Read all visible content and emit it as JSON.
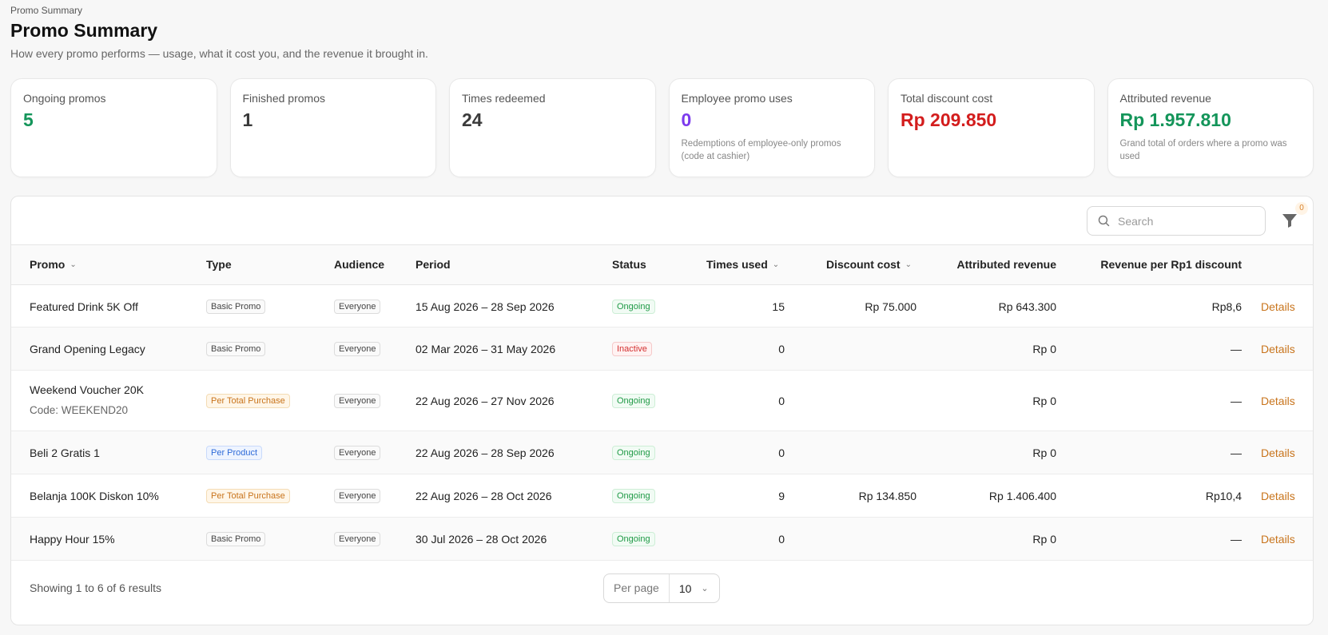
{
  "breadcrumb": "Promo Summary",
  "title": "Promo Summary",
  "subtitle": "How every promo performs — usage, what it cost you, and the revenue it brought in.",
  "cards": [
    {
      "label": "Ongoing promos",
      "value": "5",
      "color": "#14955a",
      "sub": ""
    },
    {
      "label": "Finished promos",
      "value": "1",
      "color": "#3a3a3a",
      "sub": ""
    },
    {
      "label": "Times redeemed",
      "value": "24",
      "color": "#3a3a3a",
      "sub": ""
    },
    {
      "label": "Employee promo uses",
      "value": "0",
      "color": "#7c3aed",
      "sub": "Redemptions of employee-only promos (code at cashier)"
    },
    {
      "label": "Total discount cost",
      "value": "Rp 209.850",
      "color": "#d31d1d",
      "sub": ""
    },
    {
      "label": "Attributed revenue",
      "value": "Rp 1.957.810",
      "color": "#14955a",
      "sub": "Grand total of orders where a promo was used"
    }
  ],
  "toolbar": {
    "search_placeholder": "Search",
    "filter_count": "0",
    "search_icon": "search-icon",
    "filter_icon": "funnel-icon"
  },
  "columns": {
    "promo": "Promo",
    "type": "Type",
    "audience": "Audience",
    "period": "Period",
    "status": "Status",
    "times_used": "Times used",
    "discount_cost": "Discount cost",
    "attributed_revenue": "Attributed revenue",
    "revenue_per": "Revenue per Rp1 discount"
  },
  "rows": [
    {
      "promo": "Featured Drink 5K Off",
      "code": "",
      "type": "Basic Promo",
      "type_style": "gray",
      "audience": "Everyone",
      "period": "15 Aug 2026 – 28 Sep 2026",
      "status": "Ongoing",
      "status_style": "green",
      "times_used": "15",
      "discount_cost": "Rp 75.000",
      "attributed_revenue": "Rp 643.300",
      "revenue_per": "Rp8,6",
      "action": "Details"
    },
    {
      "promo": "Grand Opening Legacy",
      "code": "",
      "type": "Basic Promo",
      "type_style": "gray",
      "audience": "Everyone",
      "period": "02 Mar 2026 – 31 May 2026",
      "status": "Inactive",
      "status_style": "red",
      "times_used": "0",
      "discount_cost": "",
      "attributed_revenue": "Rp 0",
      "revenue_per": "—",
      "action": "Details"
    },
    {
      "promo": "Weekend Voucher 20K",
      "code": "Code: WEEKEND20",
      "type": "Per Total Purchase",
      "type_style": "orange",
      "audience": "Everyone",
      "period": "22 Aug 2026 – 27 Nov 2026",
      "status": "Ongoing",
      "status_style": "green",
      "times_used": "0",
      "discount_cost": "",
      "attributed_revenue": "Rp 0",
      "revenue_per": "—",
      "action": "Details"
    },
    {
      "promo": "Beli 2 Gratis 1",
      "code": "",
      "type": "Per Product",
      "type_style": "blue",
      "audience": "Everyone",
      "period": "22 Aug 2026 – 28 Sep 2026",
      "status": "Ongoing",
      "status_style": "green",
      "times_used": "0",
      "discount_cost": "",
      "attributed_revenue": "Rp 0",
      "revenue_per": "—",
      "action": "Details"
    },
    {
      "promo": "Belanja 100K Diskon 10%",
      "code": "",
      "type": "Per Total Purchase",
      "type_style": "orange",
      "audience": "Everyone",
      "period": "22 Aug 2026 – 28 Oct 2026",
      "status": "Ongoing",
      "status_style": "green",
      "times_used": "9",
      "discount_cost": "Rp 134.850",
      "attributed_revenue": "Rp 1.406.400",
      "revenue_per": "Rp10,4",
      "action": "Details"
    },
    {
      "promo": "Happy Hour 15%",
      "code": "",
      "type": "Basic Promo",
      "type_style": "gray",
      "audience": "Everyone",
      "period": "30 Jul 2026 – 28 Oct 2026",
      "status": "Ongoing",
      "status_style": "green",
      "times_used": "0",
      "discount_cost": "",
      "attributed_revenue": "Rp 0",
      "revenue_per": "—",
      "action": "Details"
    }
  ],
  "footer": {
    "showing": "Showing 1 to 6 of 6 results",
    "per_page_label": "Per page",
    "per_page_value": "10"
  }
}
